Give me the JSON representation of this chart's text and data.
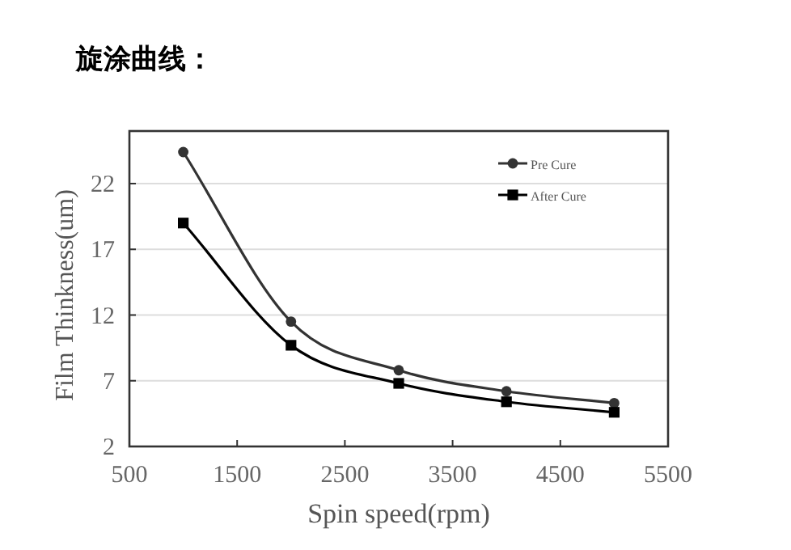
{
  "chart_data": {
    "type": "line",
    "title": "旋涂曲线：",
    "xlabel": "Spin speed(rpm)",
    "ylabel": "Film Thinkness(um)",
    "x": [
      1000,
      2000,
      3000,
      4000,
      5000
    ],
    "series": [
      {
        "name": "Pre Cure",
        "color": "#333333",
        "marker": "circle",
        "values": [
          24.4,
          11.5,
          7.8,
          6.2,
          5.3
        ]
      },
      {
        "name": "After Cure",
        "color": "#000000",
        "marker": "square",
        "values": [
          19.0,
          9.7,
          6.8,
          5.4,
          4.6
        ]
      }
    ],
    "xlim": [
      500,
      5500
    ],
    "xticks": [
      500,
      1500,
      2500,
      3500,
      4500,
      5500
    ],
    "ylim": [
      2,
      26
    ],
    "yticks": [
      2,
      7,
      12,
      17,
      22
    ],
    "grid": "y",
    "legend": "top right",
    "line_style": "solid"
  }
}
